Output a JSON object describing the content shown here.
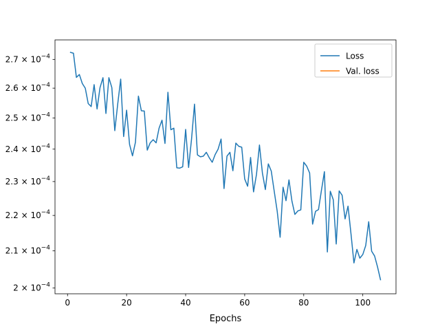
{
  "chart_data": {
    "type": "line",
    "xlabel": "Epochs",
    "ylabel": "",
    "title": "",
    "y_scale": "log",
    "xlim": [
      -4.25,
      111.25
    ],
    "ylim": [
      0.0001985,
      0.000277
    ],
    "x_ticks": [
      0,
      20,
      40,
      60,
      80,
      100
    ],
    "x_tick_labels": [
      "0",
      "20",
      "40",
      "60",
      "80",
      "100"
    ],
    "y_ticks": [
      0.0002,
      0.00021,
      0.00022,
      0.00023,
      0.00024,
      0.00025,
      0.00026,
      0.00027
    ],
    "y_tick_mantissas": [
      "2",
      "2.1",
      "2.2",
      "2.3",
      "2.4",
      "2.5",
      "2.6",
      "2.7"
    ],
    "y_tick_base": "× 10",
    "y_tick_exponent": "−4",
    "grid": false,
    "legend_position": "top-right",
    "series": [
      {
        "name": "Loss",
        "color": "#1f77b4",
        "x": [
          1,
          2,
          3,
          4,
          5,
          6,
          7,
          8,
          9,
          10,
          11,
          12,
          13,
          14,
          15,
          16,
          17,
          18,
          19,
          20,
          21,
          22,
          23,
          24,
          25,
          26,
          27,
          28,
          29,
          30,
          31,
          32,
          33,
          34,
          35,
          36,
          37,
          38,
          39,
          40,
          41,
          42,
          43,
          44,
          45,
          46,
          47,
          48,
          49,
          50,
          51,
          52,
          53,
          54,
          55,
          56,
          57,
          58,
          59,
          60,
          61,
          62,
          63,
          64,
          65,
          66,
          67,
          68,
          69,
          70,
          71,
          72,
          73,
          74,
          75,
          76,
          77,
          78,
          79,
          80,
          81,
          82,
          83,
          84,
          85,
          86,
          87,
          88,
          89,
          90,
          91,
          92,
          93,
          94,
          95,
          96,
          97,
          98,
          99,
          100,
          101,
          102,
          103,
          104,
          105,
          106
        ],
        "values": [
          0.0002725,
          0.0002722,
          0.0002637,
          0.0002647,
          0.0002616,
          0.00026,
          0.0002548,
          0.0002538,
          0.0002612,
          0.000253,
          0.0002602,
          0.0002636,
          0.0002515,
          0.0002636,
          0.0002602,
          0.0002459,
          0.0002547,
          0.0002631,
          0.000244,
          0.0002526,
          0.0002415,
          0.0002379,
          0.0002422,
          0.0002573,
          0.0002524,
          0.0002523,
          0.0002397,
          0.000242,
          0.000243,
          0.000242,
          0.0002467,
          0.0002493,
          0.0002418,
          0.0002586,
          0.0002462,
          0.0002467,
          0.0002342,
          0.0002341,
          0.0002345,
          0.0002463,
          0.0002343,
          0.0002432,
          0.0002546,
          0.0002382,
          0.0002376,
          0.0002378,
          0.000239,
          0.0002373,
          0.0002359,
          0.0002383,
          0.00024,
          0.0002432,
          0.0002279,
          0.0002378,
          0.000239,
          0.0002333,
          0.0002419,
          0.0002409,
          0.0002406,
          0.0002308,
          0.0002286,
          0.0002374,
          0.0002269,
          0.0002322,
          0.0002413,
          0.0002326,
          0.0002276,
          0.0002354,
          0.0002332,
          0.0002271,
          0.0002213,
          0.0002138,
          0.0002283,
          0.0002243,
          0.0002305,
          0.0002242,
          0.0002203,
          0.0002213,
          0.0002216,
          0.0002359,
          0.0002347,
          0.0002326,
          0.0002175,
          0.0002212,
          0.0002217,
          0.0002274,
          0.000233,
          0.0002097,
          0.0002271,
          0.0002246,
          0.0002119,
          0.0002272,
          0.0002259,
          0.000219,
          0.0002227,
          0.0002148,
          0.0002067,
          0.0002104,
          0.000208,
          0.000209,
          0.0002115,
          0.0002182,
          0.0002099,
          0.0002086,
          0.0002056,
          0.0002022
        ]
      },
      {
        "name": "Val. loss",
        "color": "#ff7f0e",
        "x": [],
        "values": []
      }
    ]
  }
}
